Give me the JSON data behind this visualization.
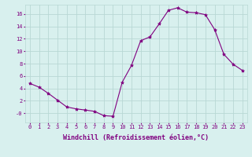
{
  "hours": [
    0,
    1,
    2,
    3,
    4,
    5,
    6,
    7,
    8,
    9,
    10,
    11,
    12,
    13,
    14,
    15,
    16,
    17,
    18,
    19,
    20,
    21,
    22,
    23
  ],
  "values": [
    4.8,
    4.2,
    3.2,
    2.1,
    1.0,
    0.7,
    0.5,
    0.3,
    -0.4,
    -0.5,
    5.0,
    7.7,
    11.7,
    12.3,
    14.4,
    16.6,
    17.0,
    16.3,
    16.2,
    15.9,
    13.5,
    9.5,
    7.9,
    6.9
  ],
  "line_color": "#800080",
  "marker": "*",
  "marker_size": 3,
  "xlabel": "Windchill (Refroidissement éolien,°C)",
  "xlim": [
    -0.5,
    23.5
  ],
  "ylim": [
    -1.5,
    17.5
  ],
  "yticks": [
    0,
    2,
    4,
    6,
    8,
    10,
    12,
    14,
    16
  ],
  "ytick_labels": [
    "-0",
    "2",
    "4",
    "6",
    "8",
    "10",
    "12",
    "14",
    "16"
  ],
  "xticks": [
    0,
    1,
    2,
    3,
    4,
    5,
    6,
    7,
    8,
    9,
    10,
    11,
    12,
    13,
    14,
    15,
    16,
    17,
    18,
    19,
    20,
    21,
    22,
    23
  ],
  "bg_color": "#d8f0ee",
  "grid_color": "#b8d8d4",
  "font_color": "#800080",
  "tick_fontsize": 5,
  "xlabel_fontsize": 6
}
